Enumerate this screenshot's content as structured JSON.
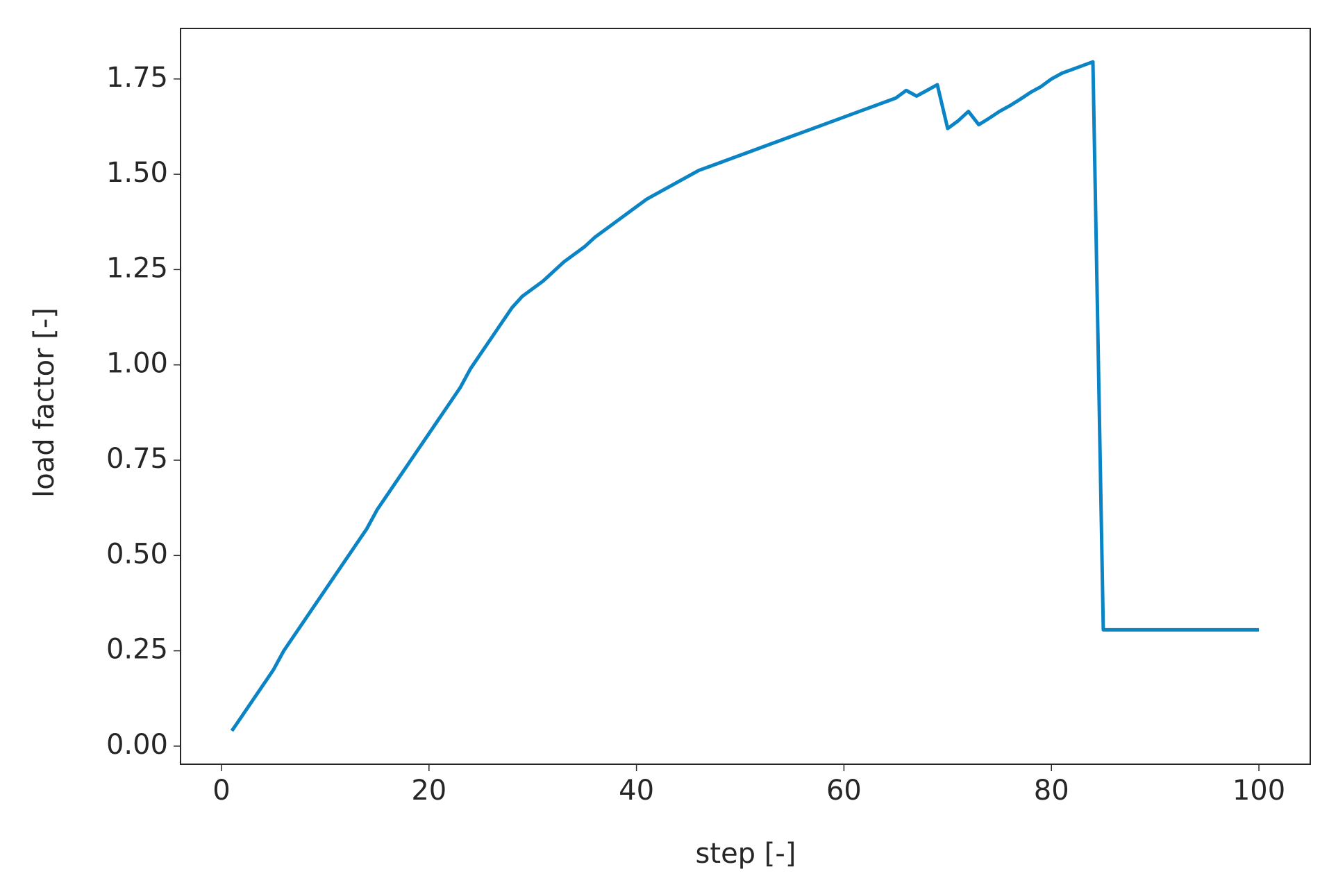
{
  "chart_data": {
    "type": "line",
    "xlabel": "step [-]",
    "ylabel": "load factor [-]",
    "x": [
      1,
      2,
      3,
      4,
      5,
      6,
      7,
      8,
      9,
      10,
      11,
      12,
      13,
      14,
      15,
      16,
      17,
      18,
      19,
      20,
      21,
      22,
      23,
      24,
      25,
      26,
      27,
      28,
      29,
      30,
      31,
      32,
      33,
      34,
      35,
      36,
      37,
      38,
      39,
      40,
      41,
      42,
      43,
      44,
      45,
      46,
      47,
      48,
      49,
      50,
      51,
      52,
      53,
      54,
      55,
      56,
      57,
      58,
      59,
      60,
      61,
      62,
      63,
      64,
      65,
      66,
      67,
      68,
      69,
      70,
      71,
      72,
      73,
      74,
      75,
      76,
      77,
      78,
      79,
      80,
      81,
      82,
      83,
      84,
      85,
      86,
      87,
      88,
      89,
      90,
      91,
      92,
      93,
      94,
      95,
      96,
      97,
      98,
      99,
      100
    ],
    "series": [
      {
        "color": "#0a84c4",
        "values": [
          0.04,
          0.08,
          0.12,
          0.16,
          0.2,
          0.25,
          0.29,
          0.33,
          0.37,
          0.41,
          0.45,
          0.49,
          0.53,
          0.57,
          0.62,
          0.66,
          0.7,
          0.74,
          0.78,
          0.82,
          0.86,
          0.9,
          0.94,
          0.99,
          1.03,
          1.07,
          1.11,
          1.15,
          1.18,
          1.2,
          1.22,
          1.245,
          1.27,
          1.29,
          1.31,
          1.335,
          1.355,
          1.375,
          1.395,
          1.415,
          1.435,
          1.45,
          1.465,
          1.48,
          1.495,
          1.51,
          1.52,
          1.53,
          1.54,
          1.55,
          1.56,
          1.57,
          1.58,
          1.59,
          1.6,
          1.61,
          1.62,
          1.63,
          1.64,
          1.65,
          1.66,
          1.67,
          1.68,
          1.69,
          1.7,
          1.72,
          1.705,
          1.72,
          1.735,
          1.62,
          1.64,
          1.665,
          1.63,
          1.647,
          1.665,
          1.68,
          1.697,
          1.715,
          1.73,
          1.75,
          1.765,
          1.775,
          1.785,
          1.795,
          0.305,
          0.305,
          0.305,
          0.305,
          0.305,
          0.305,
          0.305,
          0.305,
          0.305,
          0.305,
          0.305,
          0.305,
          0.305,
          0.305,
          0.305,
          0.305
        ]
      }
    ],
    "xlim": [
      -3.95,
      104.95
    ],
    "ylim": [
      -0.0475,
      1.8825
    ],
    "xticks": [
      0,
      20,
      40,
      60,
      80,
      100
    ],
    "yticks": [
      {
        "value": 0,
        "label": "0.00"
      },
      0.25,
      {
        "value": 0.5,
        "label": "0.50"
      },
      0.75,
      {
        "value": 1,
        "label": "1.00"
      },
      1.25,
      {
        "value": 1.5,
        "label": "1.50"
      },
      1.75
    ],
    "grid": false
  }
}
